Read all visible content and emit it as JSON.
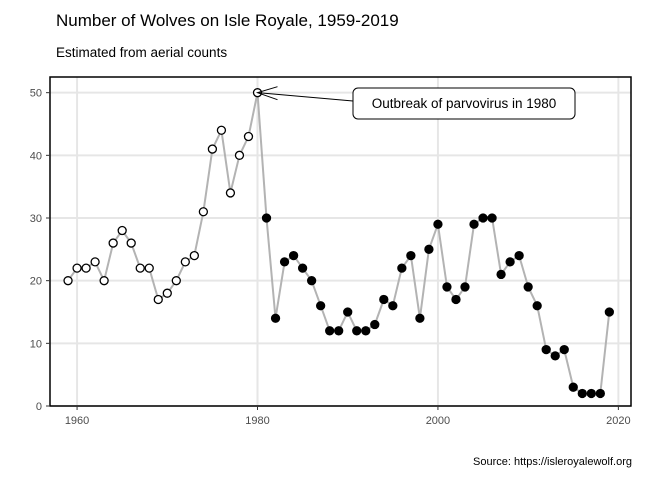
{
  "chart_data": {
    "type": "line",
    "title": "Number of Wolves on Isle Royale, 1959-2019",
    "subtitle": "Estimated from aerial counts",
    "caption": "Source: https://isleroyalewolf.org",
    "xlabel": "",
    "ylabel": "",
    "xlim": [
      1957.0,
      2021.4
    ],
    "ylim": [
      0,
      52.5
    ],
    "x_ticks": [
      1960,
      1980,
      2000,
      2020
    ],
    "y_ticks": [
      0,
      10,
      20,
      30,
      40,
      50
    ],
    "grid": true,
    "line_color": "#b3b3b3",
    "point_color": "#000000",
    "split_year": 1980,
    "x": [
      1959,
      1960,
      1961,
      1962,
      1963,
      1964,
      1965,
      1966,
      1967,
      1968,
      1969,
      1970,
      1971,
      1972,
      1973,
      1974,
      1975,
      1976,
      1977,
      1978,
      1979,
      1980,
      1981,
      1982,
      1983,
      1984,
      1985,
      1986,
      1987,
      1988,
      1989,
      1990,
      1991,
      1992,
      1993,
      1994,
      1995,
      1996,
      1997,
      1998,
      1999,
      2000,
      2001,
      2002,
      2003,
      2004,
      2005,
      2006,
      2007,
      2008,
      2009,
      2010,
      2011,
      2012,
      2013,
      2014,
      2015,
      2016,
      2017,
      2018,
      2019
    ],
    "y": [
      20,
      22,
      22,
      23,
      20,
      26,
      28,
      26,
      22,
      22,
      17,
      18,
      20,
      23,
      24,
      31,
      41,
      44,
      34,
      40,
      43,
      50,
      30,
      14,
      23,
      24,
      22,
      20,
      16,
      12,
      12,
      15,
      12,
      12,
      13,
      17,
      16,
      22,
      24,
      14,
      25,
      29,
      19,
      17,
      19,
      29,
      30,
      30,
      21,
      23,
      24,
      19,
      16,
      9,
      8,
      9,
      3,
      2,
      2,
      2,
      15
    ],
    "annotation": {
      "text": "Outbreak of parvovirus in 1980",
      "x": 1980,
      "y": 50
    }
  }
}
